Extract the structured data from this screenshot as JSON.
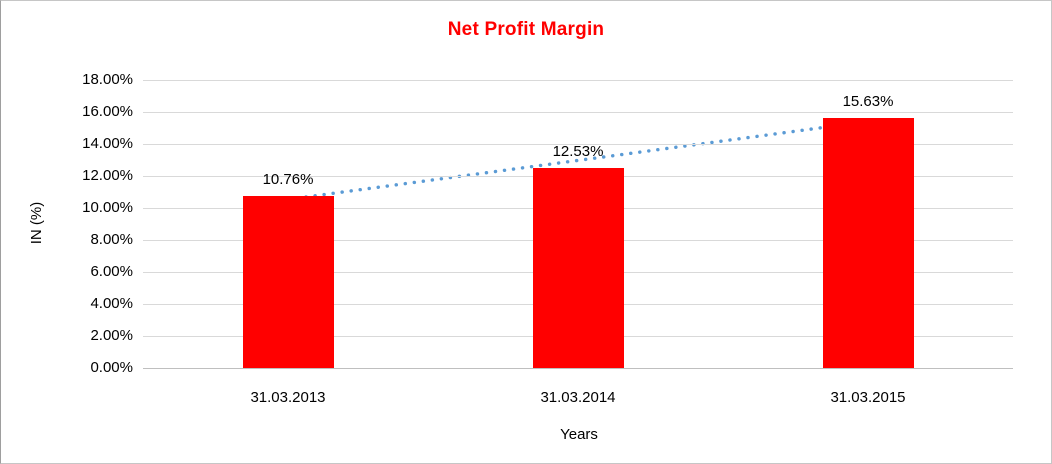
{
  "window": {
    "background": "#FFFFFF",
    "border_color": "#C6C6C6"
  },
  "chart_data": {
    "type": "bar",
    "title": "Net Profit Margin",
    "title_color": "#FF0000",
    "xlabel": "Years",
    "ylabel": "IN (%)",
    "categories": [
      "31.03.2013",
      "31.03.2014",
      "31.03.2015"
    ],
    "values": [
      10.76,
      12.53,
      15.63
    ],
    "value_labels": [
      "10.76%",
      "12.53%",
      "15.63%"
    ],
    "bar_color": "#FF0000",
    "ylim": [
      0,
      18
    ],
    "ytick_step": 2,
    "ytick_labels": [
      "18.00%",
      "16.00%",
      "14.00%",
      "12.00%",
      "10.00%",
      "8.00%",
      "6.00%",
      "4.00%",
      "2.00%",
      "0.00%"
    ],
    "grid": true,
    "gridline_color": "#D9D9D9",
    "axis_line_color": "#BFBFBF",
    "text_color": "#000000",
    "trendline": {
      "type": "linear",
      "style": "dotted",
      "color": "#5B9BD5"
    },
    "legend": "none"
  }
}
